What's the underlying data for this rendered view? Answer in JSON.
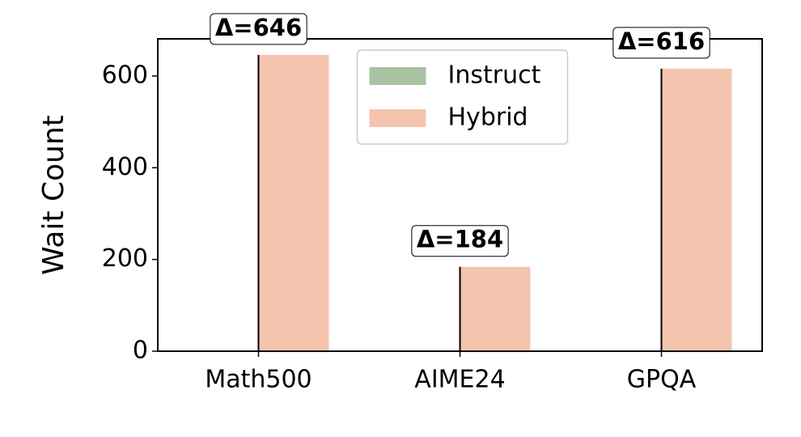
{
  "chart_data": {
    "type": "bar",
    "y_label": "Wait Count",
    "categories": [
      "Math500",
      "AIME24",
      "GPQA"
    ],
    "series": [
      {
        "name": "Instruct",
        "color": "#a8c4a2",
        "values": [
          0,
          0,
          0
        ]
      },
      {
        "name": "Hybrid",
        "color": "#f5c4ae",
        "values": [
          646,
          184,
          616
        ],
        "value_labels": [
          "Δ=646",
          "Δ=184",
          "Δ=616"
        ]
      }
    ],
    "ylim": [
      0,
      681
    ],
    "yticks": [
      0,
      200,
      400,
      600
    ],
    "legend": "upper center"
  }
}
